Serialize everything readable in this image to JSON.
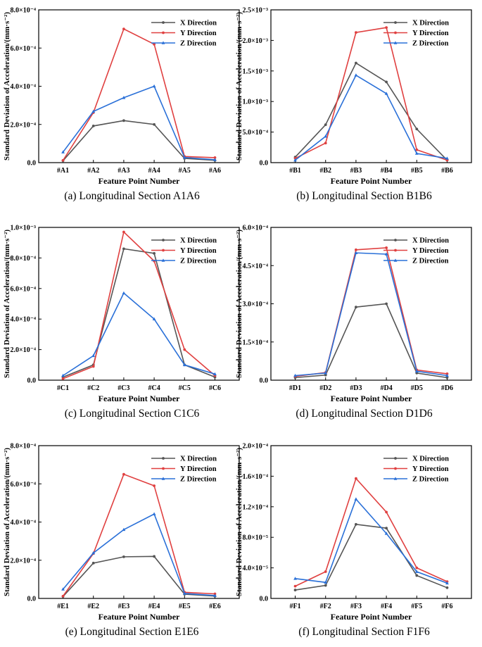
{
  "chart_data": [
    {
      "id": "a",
      "type": "line",
      "caption": "(a) Longitudinal Section A1A6",
      "xlabel": "Feature Point Number",
      "ylabel": "Standard Deviation of Acceleration/(mm·s⁻²)",
      "categories": [
        "#A1",
        "#A2",
        "#A3",
        "#A4",
        "#A5",
        "#A6"
      ],
      "ylim": [
        0,
        0.0008
      ],
      "yticks": [
        0,
        0.0002,
        0.0004,
        0.0006,
        0.0008
      ],
      "ytick_labels": [
        "0.0",
        "2.0×10⁻⁴",
        "4.0×10⁻⁴",
        "6.0×10⁻⁴",
        "8.0×10⁻⁴"
      ],
      "series": [
        {
          "name": "X Direction",
          "color": "#555555",
          "values": [
            1e-05,
            0.000192,
            0.00022,
            0.0002,
            2.2e-05,
            1.2e-05
          ]
        },
        {
          "name": "Y Direction",
          "color": "#e04040",
          "values": [
            1.2e-05,
            0.000262,
            0.0007,
            0.00062,
            3.2e-05,
            2.6e-05
          ]
        },
        {
          "name": "Z Direction",
          "color": "#2a70d8",
          "values": [
            5.5e-05,
            0.000268,
            0.00034,
            0.0004,
            2.7e-05,
            1.5e-05
          ]
        }
      ]
    },
    {
      "id": "b",
      "type": "line",
      "caption": "(b) Longitudinal Section B1B6",
      "xlabel": "Feature Point Number",
      "ylabel": "Standard Deviation of Acceleration/(mm·s⁻²)",
      "categories": [
        "#B1",
        "#B2",
        "#B3",
        "#B4",
        "#B5",
        "#B6"
      ],
      "ylim": [
        0,
        0.0025
      ],
      "yticks": [
        0,
        0.0005,
        0.001,
        0.0015,
        0.002,
        0.0025
      ],
      "ytick_labels": [
        "0.0",
        "5.0×10⁻⁴",
        "1.0×10⁻³",
        "1.5×10⁻³",
        "2.0×10⁻³",
        "2.5×10⁻³"
      ],
      "series": [
        {
          "name": "X Direction",
          "color": "#555555",
          "values": [
            9e-05,
            0.00062,
            0.00163,
            0.00132,
            0.00055,
            4e-05
          ]
        },
        {
          "name": "Y Direction",
          "color": "#e04040",
          "values": [
            7e-05,
            0.00032,
            0.00213,
            0.00221,
            0.00021,
            4e-05
          ]
        },
        {
          "name": "Z Direction",
          "color": "#2a70d8",
          "values": [
            4e-05,
            0.00043,
            0.00143,
            0.00113,
            0.00015,
            7e-05
          ]
        }
      ]
    },
    {
      "id": "c",
      "type": "line",
      "caption": "(c) Longitudinal Section C1C6",
      "xlabel": "Feature Point Number",
      "ylabel": "Standard Deviation of Acceleration/(mm·s⁻²)",
      "categories": [
        "#C1",
        "#C2",
        "#C3",
        "#C4",
        "#C5",
        "#C6"
      ],
      "ylim": [
        0,
        0.001
      ],
      "yticks": [
        0,
        0.0002,
        0.0004,
        0.0006,
        0.0008,
        0.001
      ],
      "ytick_labels": [
        "0.0",
        "2.0×10⁻⁴",
        "4.0×10⁻⁴",
        "6.0×10⁻⁴",
        "8.0×10⁻⁴",
        "1.0×10⁻³"
      ],
      "series": [
        {
          "name": "X Direction",
          "color": "#555555",
          "values": [
            2e-05,
            0.0001,
            0.00086,
            0.00083,
            0.0001,
            2e-05
          ]
        },
        {
          "name": "Y Direction",
          "color": "#e04040",
          "values": [
            1e-05,
            9e-05,
            0.00097,
            0.00078,
            0.0002,
            3e-05
          ]
        },
        {
          "name": "Z Direction",
          "color": "#2a70d8",
          "values": [
            3e-05,
            0.00016,
            0.00057,
            0.0004,
            0.0001,
            4e-05
          ]
        }
      ]
    },
    {
      "id": "d",
      "type": "line",
      "caption": "(d) Longitudinal Section D1D6",
      "xlabel": "Feature Point Number",
      "ylabel": "Standard Deviation of Acceleration/(mm·s⁻²)",
      "categories": [
        "#D1",
        "#D2",
        "#D3",
        "#D4",
        "#D5",
        "#D6"
      ],
      "ylim": [
        0,
        0.0006
      ],
      "yticks": [
        0,
        0.00015,
        0.0003,
        0.00045,
        0.0006
      ],
      "ytick_labels": [
        "0.0",
        "1.5×10⁻⁴",
        "3.0×10⁻⁴",
        "4.5×10⁻⁴",
        "6.0×10⁻⁴"
      ],
      "series": [
        {
          "name": "X Direction",
          "color": "#555555",
          "values": [
            1e-05,
            2e-05,
            0.000287,
            0.0003,
            2.8e-05,
            1e-05
          ]
        },
        {
          "name": "Y Direction",
          "color": "#e04040",
          "values": [
            1.5e-05,
            3e-05,
            0.000512,
            0.00052,
            4e-05,
            2.5e-05
          ]
        },
        {
          "name": "Z Direction",
          "color": "#2a70d8",
          "values": [
            1.8e-05,
            2.8e-05,
            0.0005,
            0.000495,
            3.5e-05,
            1.8e-05
          ]
        }
      ]
    },
    {
      "id": "e",
      "type": "line",
      "caption": "(e) Longitudinal Section E1E6",
      "xlabel": "Feature Point Number",
      "ylabel": "Standard Deviation of Acceleration/(mm·s⁻²)",
      "categories": [
        "#E1",
        "#E2",
        "#E3",
        "#E4",
        "#E5",
        "#E6"
      ],
      "ylim": [
        0,
        0.0008
      ],
      "yticks": [
        0,
        0.0002,
        0.0004,
        0.0006,
        0.0008
      ],
      "ytick_labels": [
        "0.0",
        "2.0×10⁻⁴",
        "4.0×10⁻⁴",
        "6.0×10⁻⁴",
        "8.0×10⁻⁴"
      ],
      "series": [
        {
          "name": "X Direction",
          "color": "#555555",
          "values": [
            1e-05,
            0.000185,
            0.000218,
            0.00022,
            2.2e-05,
            1.2e-05
          ]
        },
        {
          "name": "Y Direction",
          "color": "#e04040",
          "values": [
            1.2e-05,
            0.000235,
            0.00065,
            0.00059,
            3.2e-05,
            2.4e-05
          ]
        },
        {
          "name": "Z Direction",
          "color": "#2a70d8",
          "values": [
            4.8e-05,
            0.000238,
            0.00036,
            0.000442,
            2.6e-05,
            1.5e-05
          ]
        }
      ]
    },
    {
      "id": "f",
      "type": "line",
      "caption": "(f) Longitudinal Section F1F6",
      "xlabel": "Feature Point Number",
      "ylabel": "Standard Deviation of Acceleration/(mm·s⁻²)",
      "categories": [
        "#F1",
        "#F2",
        "#F3",
        "#F4",
        "#F5",
        "#F6"
      ],
      "ylim": [
        0,
        0.0002
      ],
      "yticks": [
        0,
        4e-05,
        8e-05,
        0.00012,
        0.00016,
        0.0002
      ],
      "ytick_labels": [
        "0.0",
        "4.0×10⁻⁵",
        "8.0×10⁻⁵",
        "1.2×10⁻⁴",
        "1.6×10⁻⁴",
        "2.0×10⁻⁴"
      ],
      "series": [
        {
          "name": "X Direction",
          "color": "#555555",
          "values": [
            1.1e-05,
            1.7e-05,
            9.7e-05,
            9.2e-05,
            3e-05,
            1.4e-05
          ]
        },
        {
          "name": "Y Direction",
          "color": "#e04040",
          "values": [
            1.6e-05,
            3.5e-05,
            0.000157,
            0.000113,
            4e-05,
            2.2e-05
          ]
        },
        {
          "name": "Z Direction",
          "color": "#2a70d8",
          "values": [
            2.6e-05,
            2.1e-05,
            0.00013,
            8.5e-05,
            3.5e-05,
            2e-05
          ]
        }
      ]
    }
  ]
}
